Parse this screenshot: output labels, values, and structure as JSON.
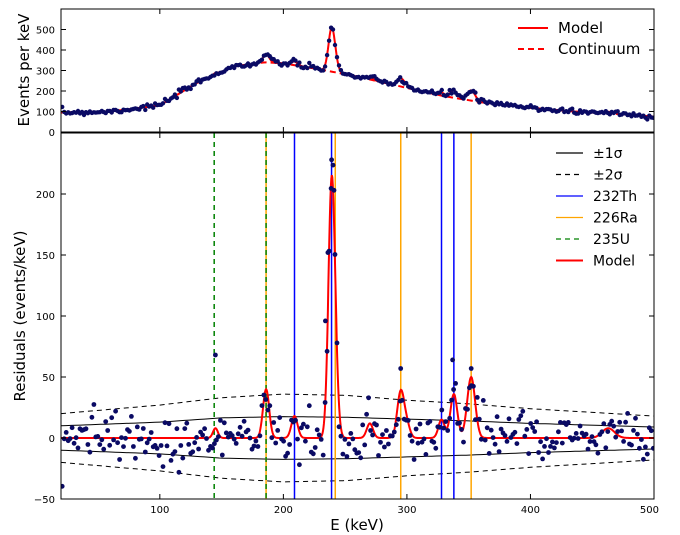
{
  "chart_data": [
    {
      "type": "scatter",
      "ylabel": "Events per keV",
      "xlim": [
        20,
        500
      ],
      "ylim": [
        0,
        600
      ],
      "yticks": [
        0,
        100,
        200,
        300,
        400,
        500
      ],
      "ytick_labels": [
        "0",
        "100",
        "200",
        "300",
        "400",
        "500"
      ],
      "legend": {
        "position": "top-right",
        "entries": [
          {
            "label": "Model",
            "style": "solid",
            "color": "#ff0000"
          },
          {
            "label": "Continuum",
            "style": "dashed",
            "color": "#ff0000"
          }
        ]
      },
      "continuum": {
        "x": [
          20,
          60,
          100,
          130,
          160,
          185,
          200,
          230,
          260,
          300,
          330,
          360,
          400,
          440,
          470,
          500
        ],
        "y": [
          95,
          100,
          130,
          240,
          320,
          340,
          335,
          305,
          270,
          215,
          175,
          145,
          118,
          98,
          88,
          75
        ]
      },
      "peaks": [
        {
          "x": 145,
          "height": 8,
          "width": 2
        },
        {
          "x": 186,
          "height": 40,
          "width": 2.5
        },
        {
          "x": 209,
          "height": 18,
          "width": 2.5
        },
        {
          "x": 239,
          "height": 200,
          "width": 2.6
        },
        {
          "x": 242,
          "height": 30,
          "width": 2.5
        },
        {
          "x": 270,
          "height": 12,
          "width": 2.5
        },
        {
          "x": 295,
          "height": 38,
          "width": 2.8
        },
        {
          "x": 300,
          "height": 10,
          "width": 2.5
        },
        {
          "x": 328,
          "height": 15,
          "width": 2.5
        },
        {
          "x": 338,
          "height": 36,
          "width": 2.8
        },
        {
          "x": 352,
          "height": 50,
          "width": 3.2
        },
        {
          "x": 463,
          "height": 8,
          "width": 5
        }
      ],
      "marker_color": "#0a0a64",
      "model_color": "#ff0000"
    },
    {
      "type": "scatter",
      "xlabel": "E (keV)",
      "ylabel": "Residuals (events/keV)",
      "xlim": [
        20,
        500
      ],
      "ylim": [
        -50,
        250
      ],
      "xticks": [
        100,
        200,
        300,
        400,
        500
      ],
      "xtick_labels": [
        "100",
        "200",
        "300",
        "400",
        "500"
      ],
      "yticks": [
        -50,
        0,
        50,
        100,
        150,
        200
      ],
      "ytick_labels": [
        "−50",
        "0",
        "50",
        "100",
        "150",
        "200"
      ],
      "legend": {
        "position": "top-right",
        "entries": [
          {
            "label": "±1σ",
            "style": "solid",
            "color": "#000000"
          },
          {
            "label": "±2σ",
            "style": "dashed",
            "color": "#000000"
          },
          {
            "label": "232Th",
            "style": "solid",
            "color": "#0000ff"
          },
          {
            "label": "226Ra",
            "style": "solid",
            "color": "#ffa500"
          },
          {
            "label": "235U",
            "style": "dashed",
            "color": "#008000"
          },
          {
            "label": "Model",
            "style": "solid",
            "color": "#ff0000"
          }
        ]
      },
      "sigma_band": {
        "x": [
          20,
          100,
          150,
          200,
          250,
          300,
          350,
          400,
          450,
          500
        ],
        "one_sigma": [
          10,
          13,
          16.5,
          17.5,
          17,
          15.5,
          14,
          12,
          10.5,
          9
        ],
        "two_sigma": [
          20,
          27,
          33,
          36,
          35,
          31,
          28,
          24,
          21,
          18
        ]
      },
      "lines": {
        "232Th": [
          209,
          239,
          328,
          338
        ],
        "226Ra": [
          186,
          242,
          295,
          352
        ],
        "235U": [
          144,
          186
        ]
      },
      "highlight_points": [
        {
          "x": 145,
          "y": 68
        },
        {
          "x": 239,
          "y": 228
        },
        {
          "x": 241,
          "y": 203
        },
        {
          "x": 236,
          "y": 152
        },
        {
          "x": 234,
          "y": 96
        },
        {
          "x": 295,
          "y": 57
        },
        {
          "x": 337,
          "y": 64
        },
        {
          "x": 352,
          "y": 57
        }
      ]
    }
  ]
}
